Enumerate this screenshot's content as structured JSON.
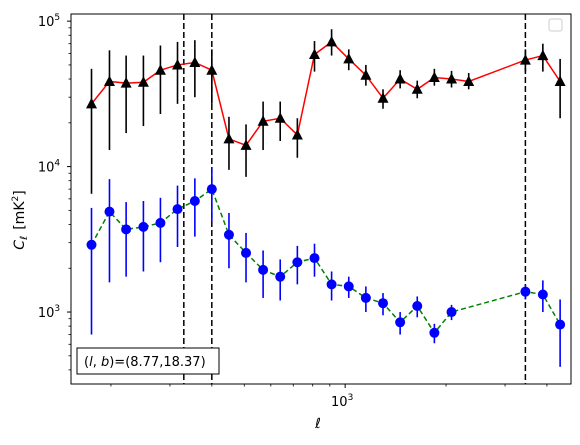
{
  "chart_data": {
    "type": "scatter",
    "xlabel": "ℓ",
    "ylabel_main": "C",
    "ylabel_sub": "ℓ",
    "ylabel_unit": "[mK",
    "ylabel_unit_sup": "2",
    "ylabel_unit_close": "]",
    "x_scale": "log",
    "y_scale": "log",
    "xlim": [
      152,
      4720
    ],
    "ylim": [
      320,
      112000
    ],
    "x_ticks": [
      {
        "value": 1000,
        "base": "10",
        "exp": "3"
      }
    ],
    "y_ticks": [
      {
        "value": 1000,
        "base": "10",
        "exp": "3"
      },
      {
        "value": 10000,
        "base": "10",
        "exp": "4"
      },
      {
        "value": 100000,
        "base": "10",
        "exp": "5"
      }
    ],
    "legend": {
      "placement": "top-right",
      "entries": []
    },
    "annotation": {
      "text": "(l, b)=(8.77,18.37)",
      "prefix": "(",
      "l": "l",
      "comma": ", ",
      "b": "b",
      "suffix": ")=(8.77,18.37)",
      "placement": "bottom-left"
    },
    "vlines": [
      330,
      400,
      3450
    ],
    "series": [
      {
        "color": "#ff0000",
        "marker": "triangle",
        "marker_color": "#000000",
        "linestyle": "solid",
        "points": [
          {
            "x": 175,
            "y": 27000,
            "lo": 6500,
            "hi": 47000
          },
          {
            "x": 198,
            "y": 38500,
            "lo": 13000,
            "hi": 63000
          },
          {
            "x": 222,
            "y": 37500,
            "lo": 17000,
            "hi": 58000
          },
          {
            "x": 250,
            "y": 38000,
            "lo": 19000,
            "hi": 58000
          },
          {
            "x": 281,
            "y": 46000,
            "lo": 23000,
            "hi": 68000
          },
          {
            "x": 316,
            "y": 50000,
            "lo": 27000,
            "hi": 72000
          },
          {
            "x": 356,
            "y": 52000,
            "lo": 30000,
            "hi": 74000
          },
          {
            "x": 400,
            "y": 46000,
            "lo": 27000,
            "hi": 64000
          },
          {
            "x": 450,
            "y": 15500,
            "lo": 9500,
            "hi": 22000
          },
          {
            "x": 506,
            "y": 14000,
            "lo": 8500,
            "hi": 19500
          },
          {
            "x": 569,
            "y": 20500,
            "lo": 13000,
            "hi": 28000
          },
          {
            "x": 640,
            "y": 21500,
            "lo": 15000,
            "hi": 28000
          },
          {
            "x": 720,
            "y": 16500,
            "lo": 11500,
            "hi": 21500
          },
          {
            "x": 810,
            "y": 59000,
            "lo": 45000,
            "hi": 73000
          },
          {
            "x": 911,
            "y": 72000,
            "lo": 58000,
            "hi": 88000
          },
          {
            "x": 1025,
            "y": 55000,
            "lo": 46000,
            "hi": 64000
          },
          {
            "x": 1153,
            "y": 42500,
            "lo": 36000,
            "hi": 50000
          },
          {
            "x": 1297,
            "y": 29500,
            "lo": 25000,
            "hi": 34000
          },
          {
            "x": 1459,
            "y": 40000,
            "lo": 34500,
            "hi": 46000
          },
          {
            "x": 1641,
            "y": 34000,
            "lo": 29500,
            "hi": 39000
          },
          {
            "x": 1846,
            "y": 41000,
            "lo": 36000,
            "hi": 47000
          },
          {
            "x": 2077,
            "y": 40000,
            "lo": 35000,
            "hi": 45500
          },
          {
            "x": 2337,
            "y": 38500,
            "lo": 34000,
            "hi": 44000
          },
          {
            "x": 3450,
            "y": 54000,
            "lo": 45000,
            "hi": 64000
          },
          {
            "x": 3890,
            "y": 58000,
            "lo": 45000,
            "hi": 70000
          },
          {
            "x": 4380,
            "y": 38500,
            "lo": 21500,
            "hi": 55000
          }
        ]
      },
      {
        "color": "#008000",
        "marker": "circle",
        "marker_color": "#0000ff",
        "linestyle": "dashed",
        "points": [
          {
            "x": 175,
            "y": 2900,
            "lo": 700,
            "hi": 5200
          },
          {
            "x": 198,
            "y": 4900,
            "lo": 1600,
            "hi": 8200
          },
          {
            "x": 222,
            "y": 3700,
            "lo": 1750,
            "hi": 5700
          },
          {
            "x": 250,
            "y": 3850,
            "lo": 1900,
            "hi": 5800
          },
          {
            "x": 281,
            "y": 4100,
            "lo": 2200,
            "hi": 6100
          },
          {
            "x": 316,
            "y": 5100,
            "lo": 2800,
            "hi": 7400
          },
          {
            "x": 356,
            "y": 5800,
            "lo": 3300,
            "hi": 8300
          },
          {
            "x": 400,
            "y": 7000,
            "lo": 4200,
            "hi": 9800
          },
          {
            "x": 450,
            "y": 3400,
            "lo": 2000,
            "hi": 4800
          },
          {
            "x": 506,
            "y": 2550,
            "lo": 1600,
            "hi": 3500
          },
          {
            "x": 569,
            "y": 1950,
            "lo": 1250,
            "hi": 2650
          },
          {
            "x": 640,
            "y": 1750,
            "lo": 1200,
            "hi": 2300
          },
          {
            "x": 720,
            "y": 2200,
            "lo": 1550,
            "hi": 2850
          },
          {
            "x": 810,
            "y": 2350,
            "lo": 1750,
            "hi": 2950
          },
          {
            "x": 911,
            "y": 1550,
            "lo": 1200,
            "hi": 1900
          },
          {
            "x": 1025,
            "y": 1500,
            "lo": 1250,
            "hi": 1750
          },
          {
            "x": 1153,
            "y": 1250,
            "lo": 1000,
            "hi": 1500
          },
          {
            "x": 1297,
            "y": 1150,
            "lo": 950,
            "hi": 1350
          },
          {
            "x": 1459,
            "y": 850,
            "lo": 700,
            "hi": 1000
          },
          {
            "x": 1641,
            "y": 1100,
            "lo": 920,
            "hi": 1280
          },
          {
            "x": 1846,
            "y": 720,
            "lo": 610,
            "hi": 830
          },
          {
            "x": 2077,
            "y": 1000,
            "lo": 880,
            "hi": 1120
          },
          {
            "x": 3450,
            "y": 1380,
            "lo": 1220,
            "hi": 1540
          },
          {
            "x": 3890,
            "y": 1320,
            "lo": 1000,
            "hi": 1650
          },
          {
            "x": 4380,
            "y": 820,
            "lo": 420,
            "hi": 1220
          }
        ]
      }
    ]
  }
}
